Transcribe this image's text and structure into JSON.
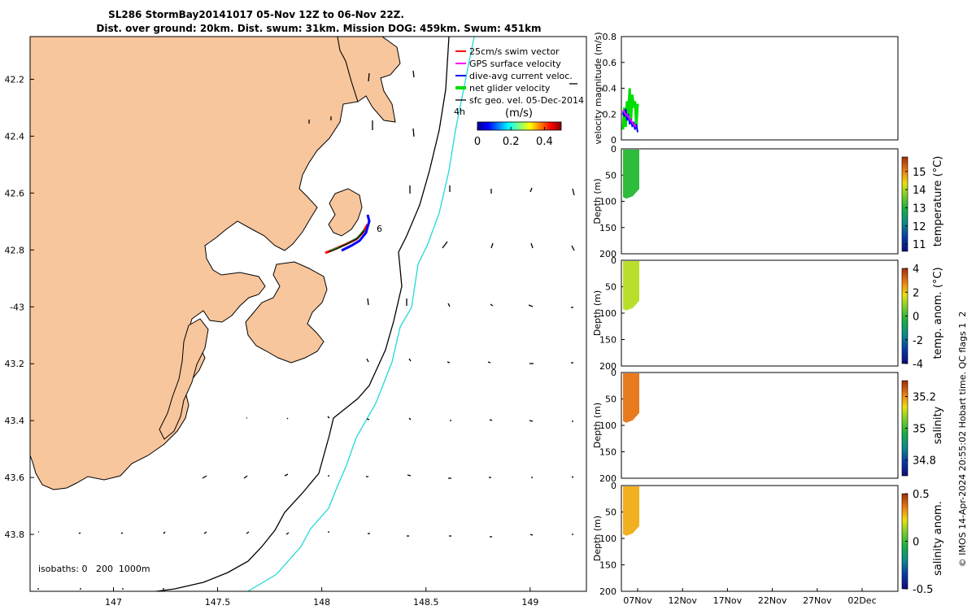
{
  "title": {
    "line1": "SL286 StormBay20141017 05-Nov 12Z to 06-Nov 22Z.",
    "line2": "Dist. over ground: 20km. Dist. swum: 31km. Mission DOG: 459km. Swum: 451km"
  },
  "map": {
    "x_ticks": [
      {
        "value": 147,
        "label": "147"
      },
      {
        "value": 147.5,
        "label": "147.5"
      },
      {
        "value": 148,
        "label": "148"
      },
      {
        "value": 148.5,
        "label": "148.5"
      },
      {
        "value": 149,
        "label": "149"
      }
    ],
    "y_ticks": [
      {
        "value": -42.2,
        "label": "42.2"
      },
      {
        "value": -42.4,
        "label": "42.4"
      },
      {
        "value": -42.6,
        "label": "42.6"
      },
      {
        "value": -42.8,
        "label": "42.8"
      },
      {
        "value": -43.0,
        "label": "-43"
      },
      {
        "value": -43.2,
        "label": "43.2"
      },
      {
        "value": -43.4,
        "label": "43.4"
      },
      {
        "value": -43.6,
        "label": "43.6"
      },
      {
        "value": -43.8,
        "label": "43.8"
      }
    ],
    "lon_range": [
      146.6,
      149.27
    ],
    "lat_range": [
      -44.0,
      -42.05
    ],
    "isobath_label": "isobaths: 0   200  1000m",
    "annotation_4h": "4h",
    "annotation_6": "6",
    "legend": [
      {
        "label": "25cm/s swim vector",
        "color": "#ff0000"
      },
      {
        "label": "GPS surface velocity",
        "color": "#ff00ff"
      },
      {
        "label": "dive-avg current veloc.",
        "color": "#0000ff"
      },
      {
        "label": "net glider velocity",
        "color": "#00dd00"
      },
      {
        "label": "sfc geo. vel. 05-Dec-2014",
        "color": "#000000"
      }
    ],
    "colorbar": {
      "title": "(m/s)",
      "ticks": [
        "0",
        "0.2",
        "0.4"
      ],
      "range": [
        0,
        0.5
      ]
    }
  },
  "chart_data": [
    {
      "type": "line",
      "title": "",
      "xlabel": "",
      "ylabel": "velocity magnitude (m/s)",
      "ylim": [
        0,
        0.8
      ],
      "yticks": [
        "0",
        "0.2",
        "0.4",
        "0.6",
        "0.8"
      ],
      "series": [
        {
          "name": "net glider velocity",
          "color": "#00dd00",
          "x": [
            0.0,
            0.15,
            0.3,
            0.45,
            0.6,
            0.75,
            0.9,
            1.05,
            1.2,
            1.35,
            1.5,
            1.65
          ],
          "values": [
            0.08,
            0.25,
            0.1,
            0.3,
            0.2,
            0.4,
            0.15,
            0.35,
            0.25,
            0.3,
            0.1,
            0.28
          ]
        },
        {
          "name": "dive-avg current veloc.",
          "color": "#0000ff",
          "x": [
            0.0,
            0.15,
            0.3,
            0.45,
            0.6,
            0.75,
            0.9,
            1.05,
            1.2,
            1.35,
            1.5,
            1.65
          ],
          "values": [
            0.22,
            0.18,
            0.24,
            0.15,
            0.2,
            0.12,
            0.16,
            0.1,
            0.14,
            0.08,
            0.12,
            0.06
          ]
        },
        {
          "name": "GPS surface velocity",
          "color": "#ff00ff",
          "x": [
            0.0,
            0.3,
            0.6,
            0.9,
            1.2,
            1.5
          ],
          "values": [
            0.23,
            0.2,
            0.18,
            0.15,
            0.12,
            0.1
          ]
        }
      ]
    },
    {
      "type": "heatmap",
      "ylabel": "Depth (m)",
      "ylim": [
        200,
        0
      ],
      "yticks": [
        "0",
        "50",
        "100",
        "150",
        "200"
      ],
      "colorbar_label": "temperature (°C)",
      "colorbar_ticks": [
        "11",
        "12",
        "13",
        "14",
        "15"
      ],
      "colorbar_range": [
        10.6,
        15.8
      ],
      "value_range": [
        13.2,
        13.8
      ],
      "max_depth": 95
    },
    {
      "type": "heatmap",
      "ylabel": "Depth (m)",
      "ylim": [
        200,
        0
      ],
      "yticks": [
        "0",
        "50",
        "100",
        "150",
        "200"
      ],
      "colorbar_label": "temp. anom. (°C)",
      "colorbar_ticks": [
        "-4",
        "-2",
        "0",
        "2",
        "4"
      ],
      "colorbar_range": [
        -4,
        4
      ],
      "value_range": [
        0.2,
        1.0
      ],
      "max_depth": 95
    },
    {
      "type": "heatmap",
      "ylabel": "Depth (m)",
      "ylim": [
        200,
        0
      ],
      "yticks": [
        "0",
        "50",
        "100",
        "150",
        "200"
      ],
      "colorbar_label": "salinity",
      "colorbar_ticks": [
        "34.8",
        "35",
        "35.2"
      ],
      "colorbar_range": [
        34.7,
        35.3
      ],
      "value_range": [
        35.2,
        35.26
      ],
      "max_depth": 95
    },
    {
      "type": "heatmap",
      "xlabel": "",
      "ylabel": "Depth (m)",
      "ylim": [
        200,
        0
      ],
      "yticks": [
        "0",
        "50",
        "100",
        "150",
        "200"
      ],
      "colorbar_label": "salinity anom.",
      "colorbar_ticks": [
        "-0.5",
        "0",
        "0.5"
      ],
      "colorbar_range": [
        -0.5,
        0.5
      ],
      "value_range": [
        0.15,
        0.3
      ],
      "max_depth": 95,
      "xticks": [
        "07Nov",
        "12Nov",
        "17Nov",
        "22Nov",
        "27Nov",
        "02Dec"
      ]
    }
  ],
  "footer_credit": "© IMOS 14-Apr-2024 20:55:02 Hobart time. QC flags 1  2"
}
